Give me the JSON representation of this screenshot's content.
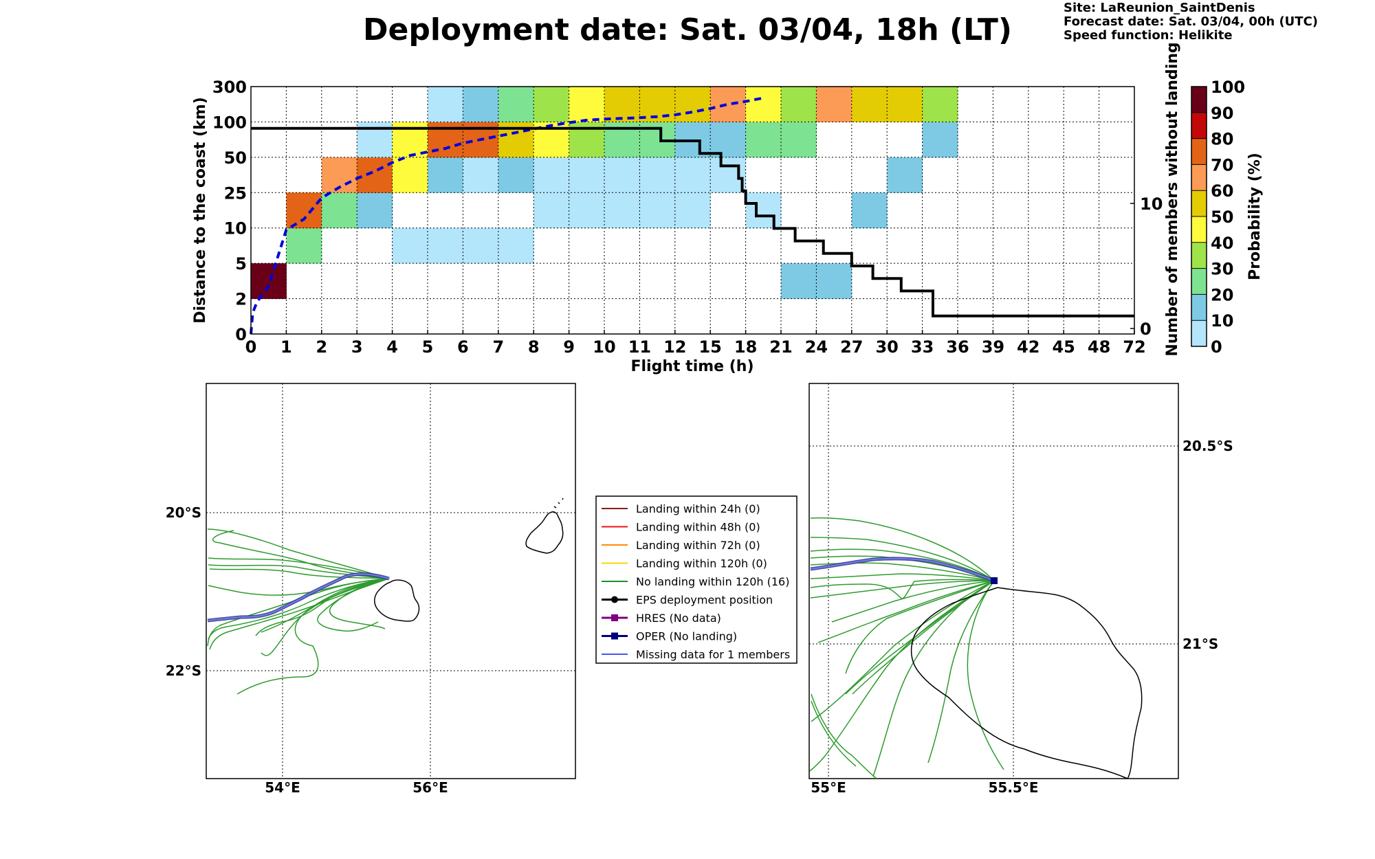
{
  "title": "Deployment date: Sat. 03/04, 18h (LT)",
  "info": {
    "site": "Site: LaReunion_SaintDenis",
    "forecast": "Forecast date: Sat. 03/04, 00h (UTC)",
    "speed": "Speed function: Helikite"
  },
  "colors": {
    "c0": "#b3e5fb",
    "c10": "#7ecae4",
    "c20": "#7ee293",
    "c30": "#9fe34a",
    "c40": "#fdfb3b",
    "c50": "#e4cc04",
    "c60": "#fb9b55",
    "c70": "#e36417",
    "c80": "#c3080a",
    "c90": "#980000",
    "c100": "#6a0018"
  },
  "chart_data": [
    {
      "type": "heatmap",
      "xlabel": "Flight time (h)",
      "ylabel": "Distance to the coast (km)",
      "y2label": "Number of members without landing",
      "colorbar_label": "Probability (%)",
      "x_ticks": [
        "0",
        "1",
        "2",
        "3",
        "4",
        "5",
        "6",
        "7",
        "8",
        "9",
        "10",
        "11",
        "12",
        "15",
        "18",
        "21",
        "24",
        "27",
        "30",
        "33",
        "36",
        "39",
        "42",
        "45",
        "48",
        "72"
      ],
      "y_ticks": [
        "0",
        "2",
        "5",
        "10",
        "25",
        "50",
        "100",
        "300"
      ],
      "y2_ticks": [
        "0",
        "10"
      ],
      "colorbar_ticks": [
        "0",
        "10",
        "20",
        "30",
        "40",
        "50",
        "60",
        "70",
        "80",
        "90",
        "100"
      ],
      "cells": [
        {
          "x": 0,
          "y": 1,
          "c": "c100"
        },
        {
          "x": 1,
          "y": 2,
          "c": "c20"
        },
        {
          "x": 1,
          "y": 3,
          "c": "c70"
        },
        {
          "x": 2,
          "y": 3,
          "c": "c20"
        },
        {
          "x": 2,
          "y": 4,
          "c": "c60"
        },
        {
          "x": 3,
          "y": 3,
          "c": "c10"
        },
        {
          "x": 3,
          "y": 4,
          "c": "c70"
        },
        {
          "x": 3,
          "y": 5,
          "c": "c0"
        },
        {
          "x": 4,
          "y": 2,
          "c": "c0"
        },
        {
          "x": 4,
          "y": 4,
          "c": "c40"
        },
        {
          "x": 4,
          "y": 5,
          "c": "c40"
        },
        {
          "x": 5,
          "y": 2,
          "c": "c0"
        },
        {
          "x": 5,
          "y": 4,
          "c": "c10"
        },
        {
          "x": 5,
          "y": 5,
          "c": "c70"
        },
        {
          "x": 5,
          "y": 6,
          "c": "c0"
        },
        {
          "x": 6,
          "y": 2,
          "c": "c0"
        },
        {
          "x": 6,
          "y": 4,
          "c": "c0"
        },
        {
          "x": 6,
          "y": 5,
          "c": "c70"
        },
        {
          "x": 6,
          "y": 6,
          "c": "c10"
        },
        {
          "x": 7,
          "y": 2,
          "c": "c0"
        },
        {
          "x": 7,
          "y": 4,
          "c": "c10"
        },
        {
          "x": 7,
          "y": 5,
          "c": "c50"
        },
        {
          "x": 7,
          "y": 6,
          "c": "c20"
        },
        {
          "x": 8,
          "y": 3,
          "c": "c0"
        },
        {
          "x": 8,
          "y": 4,
          "c": "c0"
        },
        {
          "x": 8,
          "y": 5,
          "c": "c40"
        },
        {
          "x": 8,
          "y": 6,
          "c": "c30"
        },
        {
          "x": 9,
          "y": 3,
          "c": "c0"
        },
        {
          "x": 9,
          "y": 4,
          "c": "c0"
        },
        {
          "x": 9,
          "y": 5,
          "c": "c30"
        },
        {
          "x": 9,
          "y": 6,
          "c": "c40"
        },
        {
          "x": 10,
          "y": 3,
          "c": "c0"
        },
        {
          "x": 10,
          "y": 4,
          "c": "c0"
        },
        {
          "x": 10,
          "y": 5,
          "c": "c20"
        },
        {
          "x": 10,
          "y": 6,
          "c": "c50"
        },
        {
          "x": 11,
          "y": 3,
          "c": "c0"
        },
        {
          "x": 11,
          "y": 4,
          "c": "c0"
        },
        {
          "x": 11,
          "y": 5,
          "c": "c20"
        },
        {
          "x": 11,
          "y": 6,
          "c": "c50"
        },
        {
          "x": 12,
          "y": 3,
          "c": "c0"
        },
        {
          "x": 12,
          "y": 4,
          "c": "c0"
        },
        {
          "x": 12,
          "y": 5,
          "c": "c10"
        },
        {
          "x": 12,
          "y": 6,
          "c": "c50"
        },
        {
          "x": 13,
          "y": 4,
          "c": "c0"
        },
        {
          "x": 13,
          "y": 5,
          "c": "c10"
        },
        {
          "x": 13,
          "y": 6,
          "c": "c60"
        },
        {
          "x": 14,
          "y": 3,
          "c": "c0"
        },
        {
          "x": 14,
          "y": 5,
          "c": "c20"
        },
        {
          "x": 14,
          "y": 6,
          "c": "c40"
        },
        {
          "x": 15,
          "y": 1,
          "c": "c10"
        },
        {
          "x": 15,
          "y": 5,
          "c": "c20"
        },
        {
          "x": 15,
          "y": 6,
          "c": "c30"
        },
        {
          "x": 16,
          "y": 1,
          "c": "c10"
        },
        {
          "x": 16,
          "y": 6,
          "c": "c60"
        },
        {
          "x": 17,
          "y": 3,
          "c": "c10"
        },
        {
          "x": 17,
          "y": 6,
          "c": "c50"
        },
        {
          "x": 18,
          "y": 4,
          "c": "c10"
        },
        {
          "x": 18,
          "y": 6,
          "c": "c50"
        },
        {
          "x": 19,
          "y": 5,
          "c": "c10"
        },
        {
          "x": 19,
          "y": 6,
          "c": "c30"
        }
      ],
      "median_distance_line": {
        "x_idx": [
          0,
          0.05,
          0.15,
          0.3,
          0.5,
          1,
          1.5,
          2,
          2.5,
          3,
          3.5,
          4,
          4.5,
          5,
          5.5,
          6,
          6.5,
          7,
          7.5,
          8,
          8.5,
          9,
          9.5,
          10,
          10.5,
          11,
          11.5,
          12,
          12.5,
          13,
          13.5,
          14,
          14.5
        ],
        "y_idx": [
          0,
          0.6,
          0.85,
          1.1,
          1.35,
          2.95,
          3.25,
          3.85,
          4.15,
          4.4,
          4.6,
          4.85,
          5.05,
          5.15,
          5.25,
          5.4,
          5.5,
          5.6,
          5.7,
          5.8,
          5.9,
          5.98,
          6.05,
          6.08,
          6.1,
          6.12,
          6.15,
          6.2,
          6.28,
          6.38,
          6.5,
          6.58,
          6.68
        ]
      },
      "members_without_landing": {
        "x_idx": [
          0,
          11.6,
          11.6,
          12.7,
          12.7,
          13.3,
          13.3,
          13.8,
          13.8,
          13.9,
          13.9,
          14.0,
          14.0,
          14.3,
          14.3,
          14.8,
          14.8,
          15.4,
          15.4,
          16.2,
          16.2,
          17.0,
          17.0,
          17.6,
          17.6,
          18.4,
          18.4,
          19.3,
          19.3,
          25
        ],
        "members": [
          16,
          16,
          15,
          15,
          14,
          14,
          13,
          13,
          12,
          12,
          11,
          11,
          10,
          10,
          9,
          9,
          8,
          8,
          7,
          7,
          6,
          6,
          5,
          5,
          4,
          4,
          3,
          3,
          1,
          1
        ]
      }
    }
  ],
  "map_left": {
    "lon_ticks": [
      "54°E",
      "56°E"
    ],
    "lat_ticks": [
      "20°S",
      "22°S"
    ]
  },
  "map_right": {
    "lon_ticks": [
      "55°E",
      "55.5°E"
    ],
    "lat_ticks": [
      "20.5°S",
      "21°S"
    ]
  },
  "legend": [
    {
      "label": "Landing within 24h (0)",
      "color": "#8b1a1a",
      "marker": ""
    },
    {
      "label": "Landing within 48h (0)",
      "color": "#ee1111",
      "marker": ""
    },
    {
      "label": "Landing within 72h (0)",
      "color": "#ff8c00",
      "marker": ""
    },
    {
      "label": "Landing within 120h (0)",
      "color": "#f5d800",
      "marker": ""
    },
    {
      "label": "No landing within 120h (16)",
      "color": "#228b22",
      "marker": ""
    },
    {
      "label": "EPS deployment position",
      "color": "#000000",
      "marker": "circle"
    },
    {
      "label": "HRES (No data)",
      "color": "#800080",
      "marker": "square"
    },
    {
      "label": "OPER (No landing)",
      "color": "#000080",
      "marker": "square"
    },
    {
      "label": "Missing data for 1 members",
      "color": "#4455ee",
      "marker": ""
    }
  ]
}
